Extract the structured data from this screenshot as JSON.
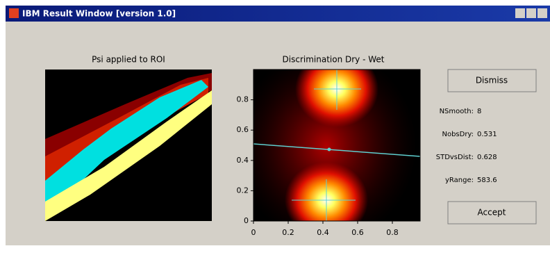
{
  "window": {
    "title": "IBM Result Window [version 1.0]"
  },
  "left_panel": {
    "title": "Psi applied to ROI"
  },
  "plot": {
    "title": "Discrimination Dry - Wet",
    "xlim": [
      0,
      0.96
    ],
    "ylim": [
      0,
      1
    ],
    "xticks": [
      0,
      0.2,
      0.4,
      0.6,
      0.8
    ],
    "yticks": [
      0,
      0.2,
      0.4,
      0.6,
      0.8
    ]
  },
  "buttons": {
    "dismiss": "Dismiss",
    "accept": "Accept"
  },
  "params": [
    {
      "label": "NSmooth:",
      "value": "8"
    },
    {
      "label": "NobsDry:",
      "value": "0.531"
    },
    {
      "label": "STDvsDist:",
      "value": "0.628"
    },
    {
      "label": "yRange:",
      "value": "583.6"
    }
  ]
}
